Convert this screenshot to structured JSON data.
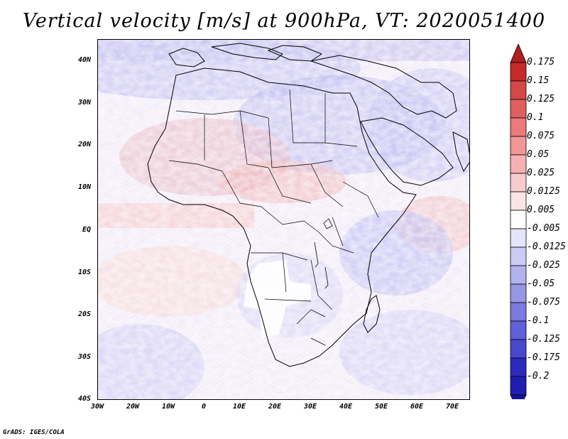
{
  "title": "Vertical velocity [m/s] at 900hPa, VT: 2020051400",
  "map": {
    "lat_ticks": [
      "40N",
      "30N",
      "20N",
      "10N",
      "EQ",
      "10S",
      "20S",
      "30S",
      "40S"
    ],
    "lon_ticks": [
      "30W",
      "20W",
      "10W",
      "0",
      "10E",
      "20E",
      "30E",
      "40E",
      "50E",
      "60E",
      "70E"
    ],
    "lat_range": [
      -40,
      45
    ],
    "lon_range": [
      -30,
      75
    ]
  },
  "colorbar": {
    "levels": [
      "0.175",
      "0.15",
      "0.125",
      "0.1",
      "0.075",
      "0.05",
      "0.025",
      "0.0125",
      "0.005",
      "-0.005",
      "-0.0125",
      "-0.025",
      "-0.05",
      "-0.075",
      "-0.1",
      "-0.125",
      "-0.175",
      "-0.2"
    ],
    "colors": [
      "#c42a2a",
      "#d44848",
      "#e06060",
      "#eb7a7a",
      "#f29696",
      "#f6b2b2",
      "#f9cbcb",
      "#fce4e4",
      "#ffffff",
      "#e4e4fb",
      "#cbcbf6",
      "#b2b2f0",
      "#9696e6",
      "#7a7ae0",
      "#6060d8",
      "#4848cc",
      "#2a2abf",
      "#1e1eb0"
    ],
    "top_arrow_color": "#b01e1e",
    "bottom_arrow_color": "#1414a0"
  },
  "footer": "GrADS: IGES/COLA"
}
